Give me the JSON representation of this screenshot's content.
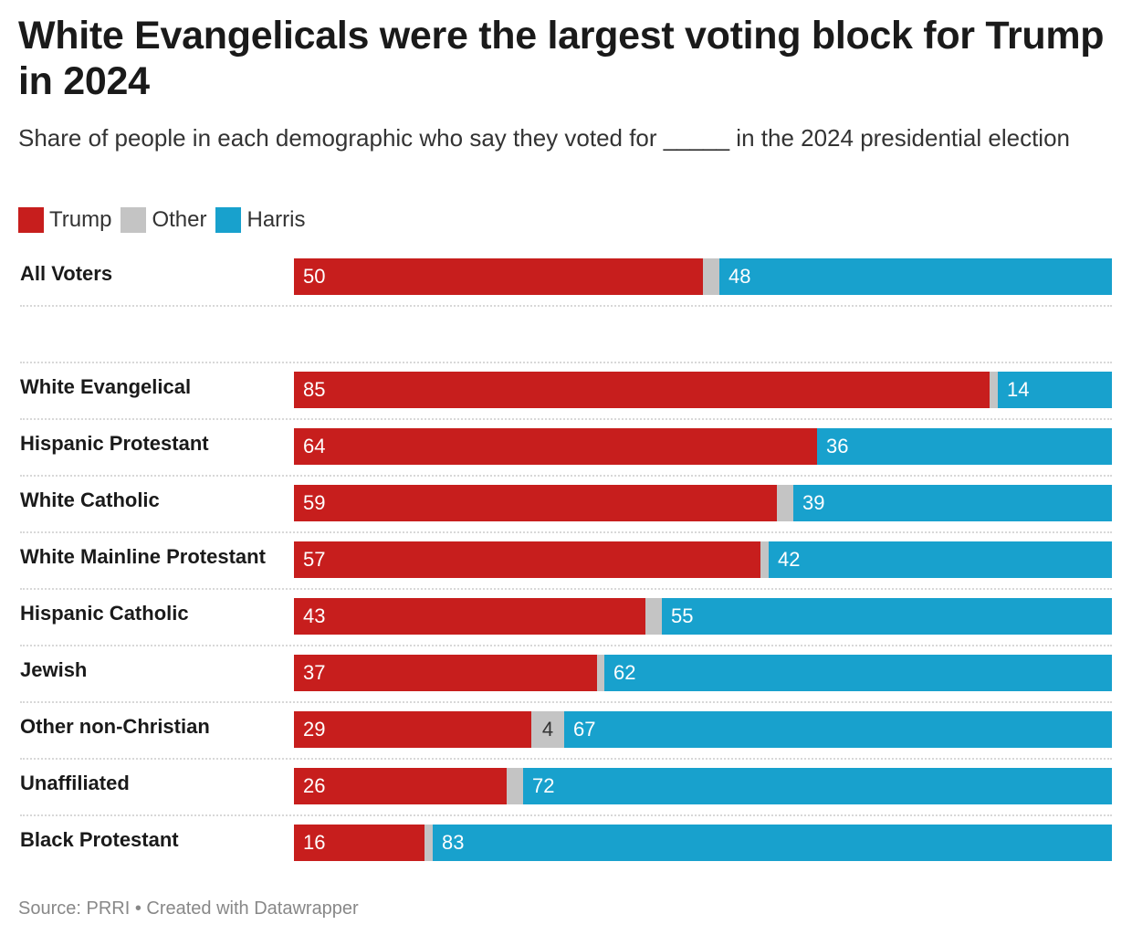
{
  "chart_data": {
    "type": "bar",
    "orientation": "horizontal",
    "stacked": true,
    "title": "White Evangelicals were the largest voting block for Trump in 2024",
    "subtitle": "Share of people in each demographic who say they voted for _____ in the 2024 presidential election",
    "legend_position": "top-left",
    "xlim": [
      0,
      100
    ],
    "grid": false,
    "categories": [
      "All Voters",
      "White Evangelical",
      "Hispanic Protestant",
      "White Catholic",
      "White Mainline Protestant",
      "Hispanic Catholic",
      "Jewish",
      "Other non-Christian",
      "Unaffiliated",
      "Black Protestant"
    ],
    "series": [
      {
        "name": "Trump",
        "color": "#c71e1d",
        "values": [
          50,
          85,
          64,
          59,
          57,
          43,
          37,
          29,
          26,
          16
        ]
      },
      {
        "name": "Other",
        "color": "#c4c4c4",
        "values": [
          2,
          1,
          0,
          2,
          1,
          2,
          1,
          4,
          2,
          1
        ]
      },
      {
        "name": "Harris",
        "color": "#18a1cd",
        "values": [
          48,
          14,
          36,
          39,
          42,
          55,
          62,
          67,
          72,
          83
        ]
      }
    ],
    "source": "Source: PRRI • Created with Datawrapper"
  }
}
